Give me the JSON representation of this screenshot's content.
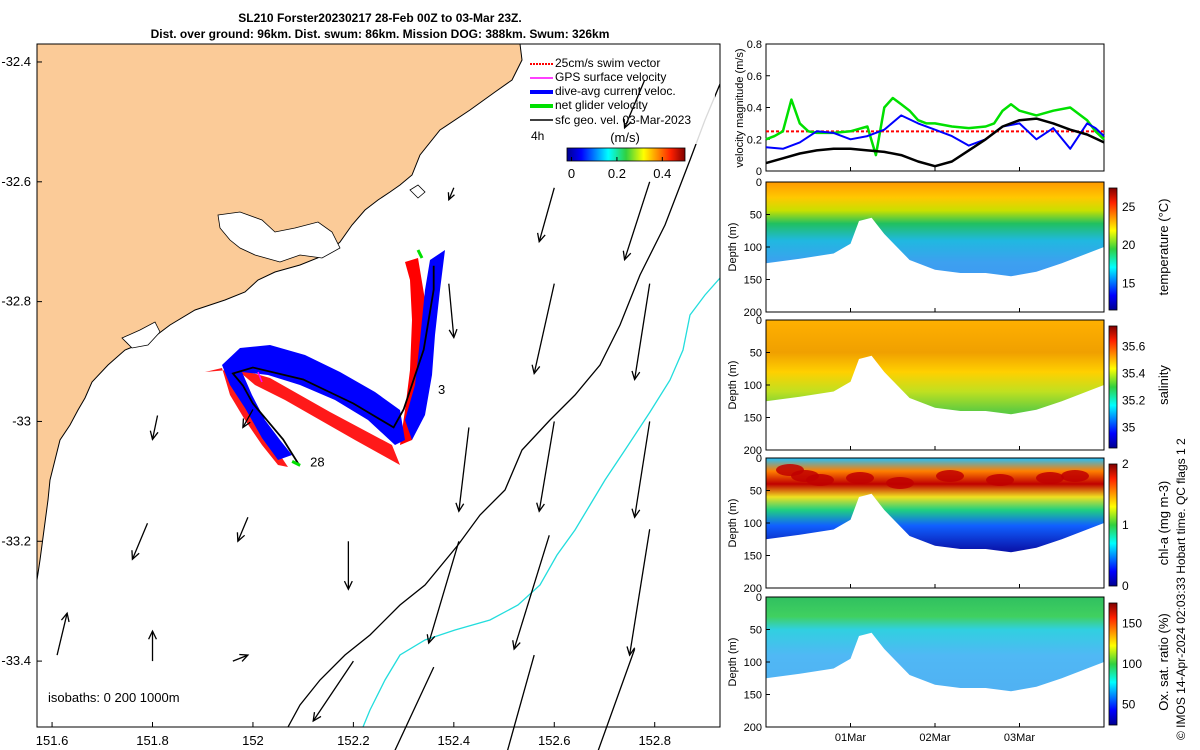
{
  "title_line1": "SL210 Forster20230217 28-Feb 00Z to 03-Mar 23Z.",
  "title_line2": "Dist. over ground: 96km. Dist. swum: 86km. Mission DOG: 388km. Swum: 326km",
  "colors": {
    "land": "#fbcb98",
    "swim_vector": "#ff0000",
    "gps_velocity": "#ff00ff",
    "current_velocity": "#0000ff",
    "net_velocity": "#00e000",
    "geo_velocity": "#000000",
    "isobath_200": "#000000",
    "isobath_1000": "#22dddd"
  },
  "map": {
    "x_ticks": [
      "151.6",
      "151.8",
      "152",
      "152.2",
      "152.4",
      "152.6",
      "152.8"
    ],
    "y_ticks": [
      "-32.4",
      "-32.6",
      "-32.8",
      "-33",
      "-33.2",
      "-33.4"
    ],
    "x_range": [
      151.57,
      152.93
    ],
    "y_range": [
      -33.51,
      -32.37
    ],
    "legend": {
      "swim": "25cm/s swim vector",
      "gps": "GPS surface velocity",
      "current": "dive-avg current veloc.",
      "net": "net glider velocity",
      "geo": "sfc geo. vel. 03-Mar-2023",
      "interval": "4h"
    },
    "colorbar": {
      "label": "(m/s)",
      "ticks": [
        "0",
        "0.2",
        "0.4"
      ],
      "range": [
        -0.02,
        0.5
      ]
    },
    "isobaths_label": "isobaths: 0   200  1000m",
    "day_labels": [
      "28",
      "3"
    ],
    "track": [
      [
        152.09,
        -33.07
      ],
      [
        152.06,
        -33.03
      ],
      [
        152.03,
        -33.0
      ],
      [
        152.0,
        -32.97
      ],
      [
        151.98,
        -32.94
      ],
      [
        151.96,
        -32.92
      ],
      [
        152.0,
        -32.91
      ],
      [
        152.05,
        -32.92
      ],
      [
        152.1,
        -32.93
      ],
      [
        152.15,
        -32.95
      ],
      [
        152.2,
        -32.97
      ],
      [
        152.24,
        -32.99
      ],
      [
        152.28,
        -33.01
      ],
      [
        152.3,
        -32.98
      ],
      [
        152.32,
        -32.93
      ],
      [
        152.34,
        -32.88
      ],
      [
        152.35,
        -32.83
      ],
      [
        152.36,
        -32.78
      ],
      [
        152.36,
        -32.74
      ]
    ],
    "geo_vectors": [
      [
        151.61,
        -33.39,
        0.02,
        0.07
      ],
      [
        151.8,
        -33.4,
        0.0,
        0.05
      ],
      [
        151.96,
        -33.4,
        0.03,
        0.01
      ],
      [
        152.2,
        -33.4,
        -0.08,
        -0.1
      ],
      [
        152.36,
        -33.41,
        -0.1,
        -0.18
      ],
      [
        152.56,
        -33.39,
        -0.07,
        -0.21
      ],
      [
        152.76,
        -33.38,
        -0.09,
        -0.21
      ],
      [
        151.79,
        -33.17,
        -0.03,
        -0.06
      ],
      [
        151.99,
        -33.16,
        -0.02,
        -0.04
      ],
      [
        152.19,
        -33.2,
        0.0,
        -0.08
      ],
      [
        152.41,
        -33.2,
        -0.06,
        -0.17
      ],
      [
        152.59,
        -33.19,
        -0.07,
        -0.19
      ],
      [
        152.79,
        -33.18,
        -0.04,
        -0.21
      ],
      [
        151.81,
        -32.99,
        -0.01,
        -0.04
      ],
      [
        152.0,
        -32.98,
        -0.02,
        -0.03
      ],
      [
        152.43,
        -33.01,
        -0.02,
        -0.14
      ],
      [
        152.6,
        -33.0,
        -0.03,
        -0.15
      ],
      [
        152.79,
        -33.0,
        -0.03,
        -0.16
      ],
      [
        152.39,
        -32.77,
        0.01,
        -0.09
      ],
      [
        152.6,
        -32.77,
        -0.04,
        -0.15
      ],
      [
        152.79,
        -32.77,
        -0.03,
        -0.16
      ],
      [
        152.4,
        -32.61,
        -0.01,
        -0.02
      ],
      [
        152.6,
        -32.61,
        -0.03,
        -0.09
      ],
      [
        152.79,
        -32.6,
        -0.05,
        -0.13
      ],
      [
        152.78,
        -32.43,
        -0.04,
        -0.08
      ]
    ]
  },
  "velocity_panel": {
    "ylabel": "velocity magnitude (m/s)",
    "y_ticks": [
      "0",
      "0.2",
      "0.4",
      "0.6",
      "0.8"
    ],
    "y_range": [
      0,
      0.8
    ],
    "x_range": [
      0,
      4
    ],
    "swim_level": 0.25,
    "series": [
      {
        "key": "net",
        "t": [
          0,
          0.1,
          0.2,
          0.3,
          0.4,
          0.5,
          0.6,
          0.8,
          1.0,
          1.2,
          1.3,
          1.4,
          1.5,
          1.6,
          1.7,
          1.8,
          1.9,
          2.0,
          2.2,
          2.4,
          2.6,
          2.7,
          2.8,
          2.9,
          3.0,
          3.2,
          3.4,
          3.6,
          3.8,
          3.9,
          4.0
        ],
        "v": [
          0.2,
          0.22,
          0.25,
          0.45,
          0.3,
          0.25,
          0.24,
          0.24,
          0.25,
          0.28,
          0.1,
          0.4,
          0.46,
          0.42,
          0.38,
          0.32,
          0.3,
          0.3,
          0.28,
          0.27,
          0.28,
          0.3,
          0.38,
          0.42,
          0.38,
          0.35,
          0.38,
          0.4,
          0.32,
          0.25,
          0.2
        ]
      },
      {
        "key": "current",
        "t": [
          0,
          0.2,
          0.4,
          0.6,
          0.8,
          1.0,
          1.2,
          1.4,
          1.6,
          1.8,
          2.0,
          2.2,
          2.4,
          2.6,
          2.8,
          3.0,
          3.2,
          3.4,
          3.6,
          3.8,
          3.9,
          4.0
        ],
        "v": [
          0.15,
          0.14,
          0.18,
          0.25,
          0.24,
          0.2,
          0.22,
          0.26,
          0.35,
          0.3,
          0.26,
          0.22,
          0.16,
          0.2,
          0.28,
          0.3,
          0.2,
          0.27,
          0.14,
          0.3,
          0.27,
          0.22
        ]
      },
      {
        "key": "geo",
        "t": [
          0,
          0.2,
          0.4,
          0.6,
          0.8,
          1.0,
          1.2,
          1.4,
          1.6,
          1.8,
          2.0,
          2.2,
          2.4,
          2.6,
          2.8,
          3.0,
          3.2,
          3.4,
          3.6,
          3.8,
          4.0
        ],
        "v": [
          0.05,
          0.08,
          0.11,
          0.13,
          0.14,
          0.14,
          0.13,
          0.12,
          0.1,
          0.06,
          0.03,
          0.06,
          0.13,
          0.2,
          0.28,
          0.32,
          0.33,
          0.3,
          0.26,
          0.23,
          0.18
        ]
      }
    ]
  },
  "profiles": [
    {
      "key": "temperature",
      "colorbar_label": "temperature (°C)",
      "cb_ticks": [
        "15",
        "20",
        "25"
      ],
      "cb_range": [
        11.5,
        27.5
      ],
      "ylabel": "Depth (m)",
      "y_ticks": [
        "0",
        "50",
        "100",
        "150",
        "200"
      ]
    },
    {
      "key": "salinity",
      "colorbar_label": "salinity",
      "cb_ticks": [
        "35",
        "35.2",
        "35.4",
        "35.6"
      ],
      "cb_range": [
        34.85,
        35.75
      ],
      "ylabel": "Depth (m)",
      "y_ticks": [
        "0",
        "50",
        "100",
        "150",
        "200"
      ]
    },
    {
      "key": "chla",
      "colorbar_label": "chl-a (mg m-3)",
      "cb_ticks": [
        "0",
        "1",
        "2"
      ],
      "cb_range": [
        0,
        2
      ],
      "ylabel": "Depth (m)",
      "y_ticks": [
        "0",
        "50",
        "100",
        "150",
        "200"
      ]
    },
    {
      "key": "oxygen",
      "colorbar_label": "Ox. sat. ratio (%)",
      "cb_ticks": [
        "50",
        "100",
        "150"
      ],
      "cb_range": [
        25,
        175
      ],
      "ylabel": "Depth (m)",
      "y_ticks": [
        "0",
        "50",
        "100",
        "150",
        "200"
      ]
    }
  ],
  "time_ticks": [
    "01Mar",
    "02Mar",
    "03Mar"
  ],
  "time_tick_values": [
    1,
    2,
    3
  ],
  "seafloor": {
    "t": [
      0,
      0.4,
      0.8,
      1.0,
      1.1,
      1.25,
      1.4,
      1.7,
      2.0,
      2.3,
      2.6,
      2.9,
      3.2,
      3.5,
      3.8,
      4.0
    ],
    "depth": [
      125,
      118,
      110,
      95,
      60,
      55,
      80,
      120,
      135,
      140,
      140,
      145,
      138,
      125,
      110,
      100
    ]
  },
  "side_caption": "© IMOS 14-Apr-2024 02:03:33 Hobart time. QC flags 1  2",
  "chart_data": [
    {
      "type": "line",
      "title": "",
      "xlabel": "",
      "ylabel": "velocity magnitude (m/s)",
      "ylim": [
        0,
        0.8
      ],
      "series": [
        {
          "name": "25cm/s swim vector",
          "x": [
            0,
            4
          ],
          "values": [
            0.25,
            0.25
          ]
        },
        {
          "name": "net glider velocity",
          "x": [
            0,
            0.1,
            0.2,
            0.3,
            0.4,
            0.5,
            0.6,
            0.8,
            1.0,
            1.2,
            1.3,
            1.4,
            1.5,
            1.6,
            1.7,
            1.8,
            1.9,
            2.0,
            2.2,
            2.4,
            2.6,
            2.7,
            2.8,
            2.9,
            3.0,
            3.2,
            3.4,
            3.6,
            3.8,
            3.9,
            4.0
          ],
          "values": [
            0.2,
            0.22,
            0.25,
            0.45,
            0.3,
            0.25,
            0.24,
            0.24,
            0.25,
            0.28,
            0.1,
            0.4,
            0.46,
            0.42,
            0.38,
            0.32,
            0.3,
            0.3,
            0.28,
            0.27,
            0.28,
            0.3,
            0.38,
            0.42,
            0.38,
            0.35,
            0.38,
            0.4,
            0.32,
            0.25,
            0.2
          ]
        },
        {
          "name": "dive-avg current veloc.",
          "x": [
            0,
            0.2,
            0.4,
            0.6,
            0.8,
            1.0,
            1.2,
            1.4,
            1.6,
            1.8,
            2.0,
            2.2,
            2.4,
            2.6,
            2.8,
            3.0,
            3.2,
            3.4,
            3.6,
            3.8,
            3.9,
            4.0
          ],
          "values": [
            0.15,
            0.14,
            0.18,
            0.25,
            0.24,
            0.2,
            0.22,
            0.26,
            0.35,
            0.3,
            0.26,
            0.22,
            0.16,
            0.2,
            0.28,
            0.3,
            0.2,
            0.27,
            0.14,
            0.3,
            0.27,
            0.22
          ]
        },
        {
          "name": "sfc geo. vel. 03-Mar-2023",
          "x": [
            0,
            0.2,
            0.4,
            0.6,
            0.8,
            1.0,
            1.2,
            1.4,
            1.6,
            1.8,
            2.0,
            2.2,
            2.4,
            2.6,
            2.8,
            3.0,
            3.2,
            3.4,
            3.6,
            3.8,
            4.0
          ],
          "values": [
            0.05,
            0.08,
            0.11,
            0.13,
            0.14,
            0.14,
            0.13,
            0.12,
            0.1,
            0.06,
            0.03,
            0.06,
            0.13,
            0.2,
            0.28,
            0.32,
            0.33,
            0.3,
            0.26,
            0.23,
            0.18
          ]
        }
      ]
    },
    {
      "type": "heatmap",
      "title": "",
      "ylabel": "Depth (m)",
      "colorbar": "temperature (°C)",
      "ylim": [
        0,
        200
      ],
      "value_range": [
        11.5,
        27.5
      ],
      "layers": [
        {
          "depth": 0,
          "value": 26
        },
        {
          "depth": 20,
          "value": 24
        },
        {
          "depth": 40,
          "value": 21
        },
        {
          "depth": 60,
          "value": 18
        },
        {
          "depth": 90,
          "value": 16
        },
        {
          "depth": 130,
          "value": 15
        }
      ]
    },
    {
      "type": "heatmap",
      "title": "",
      "ylabel": "Depth (m)",
      "colorbar": "salinity",
      "ylim": [
        0,
        200
      ],
      "value_range": [
        34.85,
        35.75
      ],
      "layers": [
        {
          "depth": 0,
          "value": 35.5
        },
        {
          "depth": 50,
          "value": 35.55
        },
        {
          "depth": 80,
          "value": 35.4
        },
        {
          "depth": 110,
          "value": 35.25
        },
        {
          "depth": 140,
          "value": 35.2
        }
      ]
    },
    {
      "type": "heatmap",
      "title": "",
      "ylabel": "Depth (m)",
      "colorbar": "chl-a (mg m-3)",
      "ylim": [
        0,
        200
      ],
      "value_range": [
        0,
        2
      ],
      "layers": [
        {
          "depth": 0,
          "value": 0.8
        },
        {
          "depth": 30,
          "value": 1.9
        },
        {
          "depth": 55,
          "value": 1.0
        },
        {
          "depth": 75,
          "value": 0.4
        },
        {
          "depth": 100,
          "value": 0.1
        },
        {
          "depth": 140,
          "value": 0.05
        }
      ]
    },
    {
      "type": "heatmap",
      "title": "",
      "ylabel": "Depth (m)",
      "colorbar": "Ox. sat. ratio (%)",
      "ylim": [
        0,
        200
      ],
      "value_range": [
        25,
        175
      ],
      "layers": [
        {
          "depth": 0,
          "value": 112
        },
        {
          "depth": 30,
          "value": 112
        },
        {
          "depth": 50,
          "value": 95
        },
        {
          "depth": 80,
          "value": 88
        },
        {
          "depth": 130,
          "value": 80
        }
      ]
    }
  ]
}
